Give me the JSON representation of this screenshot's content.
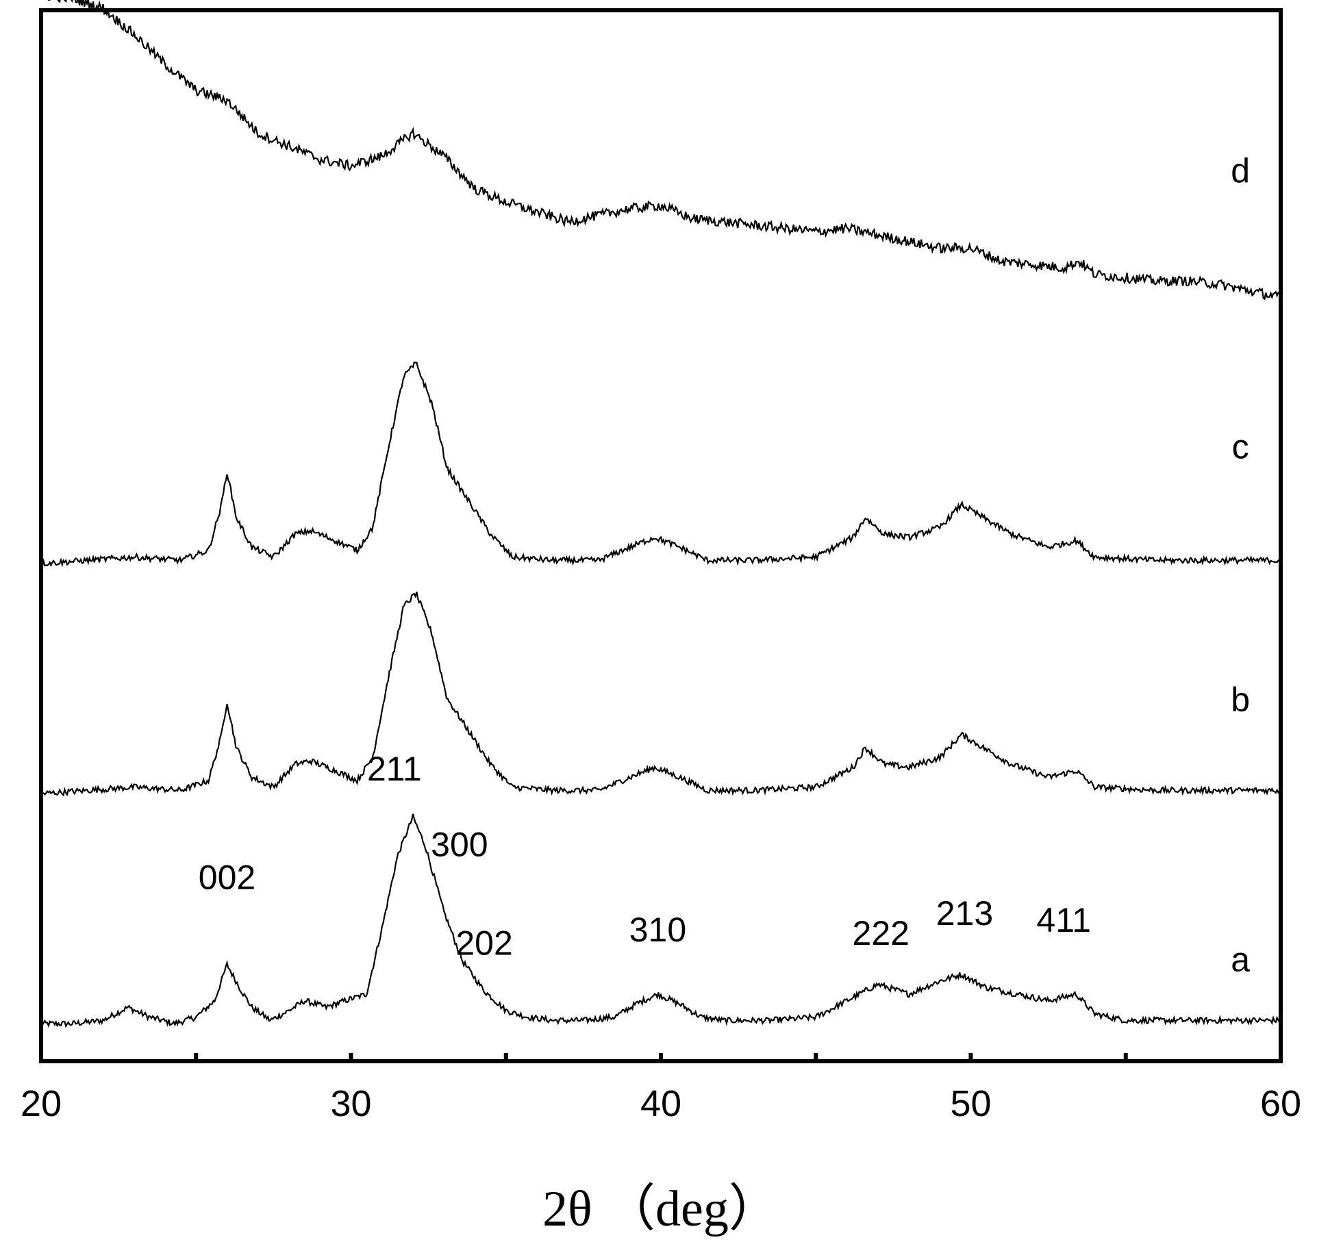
{
  "chart_data": {
    "type": "line",
    "title": "",
    "xlabel": "2θ （deg）",
    "ylabel": "",
    "xlim": [
      20,
      60
    ],
    "xticks": [
      20,
      30,
      40,
      50,
      60
    ],
    "xtick_labels": [
      "20",
      "30",
      "40",
      "50",
      "60"
    ],
    "minor_xticks": [
      25,
      35,
      45,
      55
    ],
    "grid": false,
    "y_scale": "arbitrary units (stacked traces)",
    "series": [
      {
        "name": "a",
        "offset": 0,
        "points": [
          [
            20,
            0.01
          ],
          [
            21,
            0.01
          ],
          [
            22,
            0.02
          ],
          [
            22.8,
            0.06
          ],
          [
            23.5,
            0.03
          ],
          [
            24.3,
            0.01
          ],
          [
            25,
            0.03
          ],
          [
            25.6,
            0.08
          ],
          [
            26,
            0.19
          ],
          [
            26.4,
            0.12
          ],
          [
            26.8,
            0.06
          ],
          [
            27.4,
            0.02
          ],
          [
            28,
            0.05
          ],
          [
            28.5,
            0.08
          ],
          [
            29.2,
            0.06
          ],
          [
            29.8,
            0.08
          ],
          [
            30.5,
            0.1
          ],
          [
            31,
            0.3
          ],
          [
            31.5,
            0.52
          ],
          [
            32,
            0.64
          ],
          [
            32.4,
            0.55
          ],
          [
            33,
            0.35
          ],
          [
            33.6,
            0.2
          ],
          [
            34.3,
            0.11
          ],
          [
            35,
            0.05
          ],
          [
            35.7,
            0.03
          ],
          [
            36.5,
            0.02
          ],
          [
            37.5,
            0.02
          ],
          [
            38.5,
            0.03
          ],
          [
            39.2,
            0.07
          ],
          [
            39.9,
            0.1
          ],
          [
            40.6,
            0.07
          ],
          [
            41.3,
            0.03
          ],
          [
            42,
            0.02
          ],
          [
            43.5,
            0.02
          ],
          [
            45,
            0.03
          ],
          [
            46,
            0.08
          ],
          [
            47,
            0.13
          ],
          [
            48,
            0.1
          ],
          [
            49,
            0.14
          ],
          [
            49.7,
            0.16
          ],
          [
            50.5,
            0.12
          ],
          [
            51.5,
            0.1
          ],
          [
            52.5,
            0.08
          ],
          [
            53.4,
            0.1
          ],
          [
            54,
            0.04
          ],
          [
            55,
            0.02
          ],
          [
            57,
            0.02
          ],
          [
            60,
            0.02
          ]
        ]
      },
      {
        "name": "b",
        "offset": 0.7,
        "points": [
          [
            20,
            0.01
          ],
          [
            21.5,
            0.02
          ],
          [
            23,
            0.03
          ],
          [
            24.5,
            0.02
          ],
          [
            25.4,
            0.05
          ],
          [
            25.8,
            0.18
          ],
          [
            26,
            0.29
          ],
          [
            26.3,
            0.15
          ],
          [
            26.8,
            0.06
          ],
          [
            27.5,
            0.03
          ],
          [
            28.2,
            0.1
          ],
          [
            28.7,
            0.11
          ],
          [
            29.5,
            0.08
          ],
          [
            30.2,
            0.05
          ],
          [
            30.7,
            0.12
          ],
          [
            31.2,
            0.36
          ],
          [
            31.7,
            0.58
          ],
          [
            32.1,
            0.62
          ],
          [
            32.6,
            0.5
          ],
          [
            33.1,
            0.3
          ],
          [
            33.8,
            0.2
          ],
          [
            34.5,
            0.1
          ],
          [
            35.2,
            0.03
          ],
          [
            36.5,
            0.02
          ],
          [
            38,
            0.02
          ],
          [
            39,
            0.06
          ],
          [
            39.8,
            0.09
          ],
          [
            40.6,
            0.06
          ],
          [
            41.5,
            0.02
          ],
          [
            43,
            0.02
          ],
          [
            45,
            0.03
          ],
          [
            46.2,
            0.09
          ],
          [
            46.6,
            0.15
          ],
          [
            47.2,
            0.1
          ],
          [
            48,
            0.09
          ],
          [
            49,
            0.12
          ],
          [
            49.7,
            0.19
          ],
          [
            50.4,
            0.15
          ],
          [
            51.3,
            0.1
          ],
          [
            52.5,
            0.06
          ],
          [
            53.4,
            0.08
          ],
          [
            54,
            0.03
          ],
          [
            56,
            0.02
          ],
          [
            60,
            0.02
          ]
        ]
      },
      {
        "name": "c",
        "offset": 1.4,
        "points": [
          [
            20,
            0.01
          ],
          [
            21.5,
            0.02
          ],
          [
            23,
            0.03
          ],
          [
            24.5,
            0.02
          ],
          [
            25.4,
            0.05
          ],
          [
            25.8,
            0.18
          ],
          [
            26,
            0.29
          ],
          [
            26.3,
            0.15
          ],
          [
            26.8,
            0.06
          ],
          [
            27.5,
            0.03
          ],
          [
            28.2,
            0.1
          ],
          [
            28.7,
            0.11
          ],
          [
            29.5,
            0.08
          ],
          [
            30.2,
            0.05
          ],
          [
            30.7,
            0.12
          ],
          [
            31.2,
            0.36
          ],
          [
            31.7,
            0.58
          ],
          [
            32.1,
            0.62
          ],
          [
            32.6,
            0.5
          ],
          [
            33.1,
            0.3
          ],
          [
            33.8,
            0.2
          ],
          [
            34.5,
            0.1
          ],
          [
            35.2,
            0.03
          ],
          [
            36.5,
            0.02
          ],
          [
            38,
            0.02
          ],
          [
            39,
            0.06
          ],
          [
            39.8,
            0.09
          ],
          [
            40.6,
            0.06
          ],
          [
            41.5,
            0.02
          ],
          [
            43,
            0.02
          ],
          [
            45,
            0.03
          ],
          [
            46.2,
            0.09
          ],
          [
            46.6,
            0.15
          ],
          [
            47.2,
            0.1
          ],
          [
            48,
            0.09
          ],
          [
            49,
            0.12
          ],
          [
            49.7,
            0.19
          ],
          [
            50.4,
            0.15
          ],
          [
            51.3,
            0.1
          ],
          [
            52.5,
            0.06
          ],
          [
            53.4,
            0.08
          ],
          [
            54,
            0.03
          ],
          [
            56,
            0.02
          ],
          [
            60,
            0.02
          ]
        ]
      },
      {
        "name": "d",
        "offset": 2.1,
        "points": [
          [
            20,
            1.04
          ],
          [
            21,
            1.03
          ],
          [
            22,
            1.0
          ],
          [
            23,
            0.92
          ],
          [
            24,
            0.83
          ],
          [
            25,
            0.75
          ],
          [
            26,
            0.72
          ],
          [
            27,
            0.62
          ],
          [
            28,
            0.58
          ],
          [
            29,
            0.54
          ],
          [
            30,
            0.52
          ],
          [
            31,
            0.55
          ],
          [
            32,
            0.62
          ],
          [
            33,
            0.55
          ],
          [
            34,
            0.45
          ],
          [
            35,
            0.41
          ],
          [
            36,
            0.38
          ],
          [
            37,
            0.35
          ],
          [
            38,
            0.37
          ],
          [
            39,
            0.39
          ],
          [
            40,
            0.4
          ],
          [
            41,
            0.36
          ],
          [
            42,
            0.35
          ],
          [
            43,
            0.34
          ],
          [
            44,
            0.33
          ],
          [
            45,
            0.32
          ],
          [
            46,
            0.33
          ],
          [
            47,
            0.31
          ],
          [
            48,
            0.29
          ],
          [
            49,
            0.27
          ],
          [
            50,
            0.27
          ],
          [
            51,
            0.23
          ],
          [
            52,
            0.22
          ],
          [
            53,
            0.21
          ],
          [
            53.5,
            0.23
          ],
          [
            54,
            0.19
          ],
          [
            55,
            0.18
          ],
          [
            56,
            0.17
          ],
          [
            57,
            0.17
          ],
          [
            58,
            0.16
          ],
          [
            59,
            0.14
          ],
          [
            60,
            0.12
          ]
        ]
      }
    ],
    "series_labels": [
      {
        "text": "a",
        "x": 58.7,
        "y": 0.17
      },
      {
        "text": "b",
        "x": 58.7,
        "y": 0.96
      },
      {
        "text": "c",
        "x": 58.7,
        "y": 1.73
      },
      {
        "text": "d",
        "x": 58.7,
        "y": 2.57
      }
    ],
    "annotations": [
      {
        "text": "002",
        "x": 26.0,
        "y": 0.42
      },
      {
        "text": "211",
        "x": 31.4,
        "y": 0.75
      },
      {
        "text": "300",
        "x": 33.5,
        "y": 0.52
      },
      {
        "text": "202",
        "x": 34.3,
        "y": 0.22
      },
      {
        "text": "310",
        "x": 39.9,
        "y": 0.26
      },
      {
        "text": "222",
        "x": 47.1,
        "y": 0.25
      },
      {
        "text": "213",
        "x": 49.8,
        "y": 0.31
      },
      {
        "text": "411",
        "x": 53.0,
        "y": 0.29
      }
    ]
  }
}
